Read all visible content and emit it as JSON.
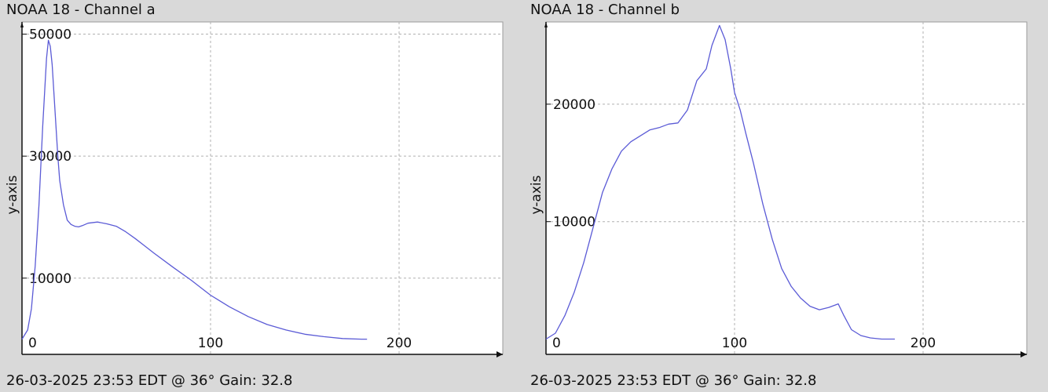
{
  "chart_data": [
    {
      "type": "line",
      "title": "NOAA 18 - Channel a",
      "ylabel": "y-axis",
      "footer": "26-03-2025 23:53 EDT @ 36° Gain: 32.8",
      "xlim": [
        0,
        255
      ],
      "ylim": [
        -2500,
        52000
      ],
      "x_ticks": [
        0,
        100,
        200
      ],
      "y_ticks": [
        10000,
        30000,
        50000
      ],
      "grid": true,
      "series": [
        {
          "color": "#5b5bd6",
          "x": [
            0,
            3,
            5,
            7,
            9,
            11,
            13,
            14,
            15,
            16,
            17,
            18,
            19,
            20,
            22,
            24,
            26,
            28,
            30,
            32,
            35,
            40,
            45,
            50,
            55,
            60,
            65,
            70,
            80,
            90,
            100,
            110,
            120,
            130,
            140,
            150,
            160,
            170,
            180,
            183
          ],
          "y": [
            0,
            1500,
            5000,
            12000,
            22000,
            35000,
            46000,
            49000,
            48000,
            45000,
            40000,
            35000,
            30000,
            26000,
            22000,
            19500,
            18800,
            18500,
            18400,
            18600,
            19000,
            19200,
            18900,
            18500,
            17600,
            16500,
            15300,
            14100,
            11800,
            9600,
            7200,
            5300,
            3700,
            2400,
            1500,
            800,
            400,
            100,
            0,
            0
          ]
        }
      ]
    },
    {
      "type": "line",
      "title": "NOAA 18 - Channel b",
      "ylabel": "y-axis",
      "footer": "26-03-2025 23:53 EDT @ 36° Gain: 32.8",
      "xlim": [
        0,
        255
      ],
      "ylim": [
        -1300,
        27000
      ],
      "x_ticks": [
        0,
        100,
        200
      ],
      "y_ticks": [
        10000,
        20000
      ],
      "grid": true,
      "series": [
        {
          "color": "#5b5bd6",
          "x": [
            0,
            5,
            10,
            15,
            20,
            25,
            30,
            35,
            40,
            45,
            50,
            55,
            60,
            65,
            70,
            75,
            80,
            85,
            88,
            92,
            95,
            98,
            100,
            103,
            106,
            110,
            115,
            120,
            125,
            130,
            135,
            140,
            145,
            150,
            155,
            158,
            162,
            167,
            172,
            178,
            185
          ],
          "y": [
            0,
            500,
            2000,
            4000,
            6500,
            9500,
            12500,
            14500,
            16000,
            16800,
            17300,
            17800,
            18000,
            18300,
            18400,
            19500,
            22000,
            23000,
            25000,
            26700,
            25500,
            23000,
            21000,
            19500,
            17500,
            15000,
            11500,
            8500,
            6000,
            4500,
            3500,
            2800,
            2500,
            2700,
            3000,
            2000,
            800,
            300,
            100,
            0,
            0
          ]
        }
      ]
    }
  ]
}
